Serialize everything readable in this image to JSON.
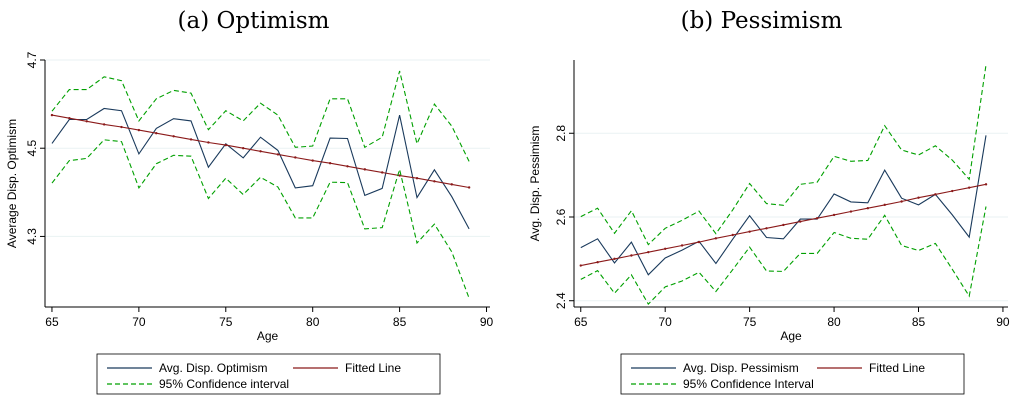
{
  "chart_data": [
    {
      "type": "line",
      "title": "(a) Optimism",
      "xlabel": "Age",
      "ylabel": "Average Disp. Optimism",
      "xlim": [
        64.6,
        90.2
      ],
      "ylim": [
        4.14,
        4.7
      ],
      "xticks": [
        65,
        70,
        75,
        80,
        85,
        90
      ],
      "xtick_labels": [
        "65",
        "70",
        "75",
        "80",
        "85",
        "90"
      ],
      "yticks": [
        4.3,
        4.5,
        4.7
      ],
      "ytick_labels": [
        "4.3",
        "4.5",
        "4.7"
      ],
      "grid": true,
      "legend_position": "bottom",
      "x": [
        65,
        66,
        67,
        68,
        69,
        70,
        71,
        72,
        73,
        74,
        75,
        76,
        77,
        78,
        79,
        80,
        81,
        82,
        83,
        84,
        85,
        86,
        87,
        88,
        89
      ],
      "series": [
        {
          "name": "Avg. Disp. Optimism",
          "color": "#1a3a5c",
          "dash": "solid",
          "values": [
            4.511,
            4.565,
            4.565,
            4.59,
            4.585,
            4.487,
            4.545,
            4.567,
            4.562,
            4.457,
            4.51,
            4.478,
            4.525,
            4.495,
            4.41,
            4.415,
            4.523,
            4.522,
            4.393,
            4.409,
            4.575,
            4.388,
            4.451,
            4.39,
            4.317
          ]
        },
        {
          "name": "Fitted Line",
          "color": "#8b1a1a",
          "dash": "solid",
          "values": [
            4.575,
            4.568,
            4.561,
            4.554,
            4.548,
            4.541,
            4.534,
            4.527,
            4.52,
            4.513,
            4.507,
            4.5,
            4.493,
            4.486,
            4.479,
            4.472,
            4.466,
            4.459,
            4.452,
            4.445,
            4.438,
            4.432,
            4.425,
            4.418,
            4.411
          ]
        },
        {
          "name": "95% Confidence interval",
          "color": "#00a000",
          "dash": "dashed",
          "values": [
            4.584,
            4.633,
            4.633,
            4.662,
            4.653,
            4.562,
            4.612,
            4.631,
            4.625,
            4.542,
            4.585,
            4.562,
            4.602,
            4.575,
            4.502,
            4.505,
            4.612,
            4.612,
            4.502,
            4.525,
            4.675,
            4.51,
            4.6,
            4.55,
            4.47
          ],
          "values_lower": [
            4.421,
            4.472,
            4.477,
            4.519,
            4.515,
            4.41,
            4.465,
            4.484,
            4.482,
            4.386,
            4.432,
            4.395,
            4.434,
            4.412,
            4.342,
            4.342,
            4.423,
            4.422,
            4.317,
            4.32,
            4.452,
            4.285,
            4.328,
            4.265,
            4.16
          ]
        }
      ],
      "legend": [
        {
          "label": "Avg. Disp. Optimism",
          "color": "#1a3a5c",
          "dash": "solid"
        },
        {
          "label": "Fitted Line",
          "color": "#8b1a1a",
          "dash": "solid"
        },
        {
          "label": "95% Confidence interval",
          "color": "#00a000",
          "dash": "dashed"
        }
      ]
    },
    {
      "type": "line",
      "title": "(b) Pessimism",
      "xlabel": "Age",
      "ylabel": "Avg. Disp. Pessimism",
      "xlim": [
        64.6,
        90.3
      ],
      "ylim": [
        2.385,
        2.975
      ],
      "xticks": [
        65,
        70,
        75,
        80,
        85,
        90
      ],
      "xtick_labels": [
        "65",
        "70",
        "75",
        "80",
        "85",
        "90"
      ],
      "yticks": [
        2.4,
        2.6,
        2.8
      ],
      "ytick_labels": [
        "2.4",
        "2.6",
        "2.8"
      ],
      "grid": true,
      "legend_position": "bottom",
      "x": [
        65,
        66,
        67,
        68,
        69,
        70,
        71,
        72,
        73,
        74,
        75,
        76,
        77,
        78,
        79,
        80,
        81,
        82,
        83,
        84,
        85,
        86,
        87,
        88,
        89
      ],
      "series": [
        {
          "name": "Avg. Disp. Pessimism",
          "color": "#1a3a5c",
          "dash": "solid",
          "values": [
            2.527,
            2.548,
            2.49,
            2.54,
            2.462,
            2.502,
            2.521,
            2.542,
            2.489,
            2.547,
            2.603,
            2.551,
            2.548,
            2.595,
            2.595,
            2.655,
            2.636,
            2.634,
            2.712,
            2.645,
            2.629,
            2.654,
            2.605,
            2.552,
            2.795
          ]
        },
        {
          "name": "Fitted Line",
          "color": "#8b1a1a",
          "dash": "solid",
          "values": [
            2.484,
            2.492,
            2.5,
            2.508,
            2.516,
            2.524,
            2.532,
            2.54,
            2.549,
            2.557,
            2.565,
            2.573,
            2.581,
            2.589,
            2.597,
            2.605,
            2.613,
            2.621,
            2.629,
            2.637,
            2.646,
            2.654,
            2.662,
            2.67,
            2.678
          ]
        },
        {
          "name": "95% Confidence Interval",
          "color": "#00a000",
          "dash": "dashed",
          "values": [
            2.601,
            2.621,
            2.561,
            2.615,
            2.534,
            2.573,
            2.592,
            2.614,
            2.56,
            2.617,
            2.68,
            2.632,
            2.628,
            2.678,
            2.683,
            2.745,
            2.733,
            2.735,
            2.818,
            2.76,
            2.748,
            2.77,
            2.736,
            2.69,
            2.963
          ],
          "values_lower": [
            2.451,
            2.472,
            2.418,
            2.462,
            2.392,
            2.433,
            2.447,
            2.468,
            2.422,
            2.474,
            2.528,
            2.471,
            2.47,
            2.513,
            2.513,
            2.563,
            2.549,
            2.547,
            2.604,
            2.532,
            2.52,
            2.537,
            2.475,
            2.411,
            2.625
          ]
        }
      ],
      "legend": [
        {
          "label": "Avg. Disp. Pessimism",
          "color": "#1a3a5c",
          "dash": "solid"
        },
        {
          "label": "Fitted Line",
          "color": "#8b1a1a",
          "dash": "solid"
        },
        {
          "label": "95% Confidence Interval",
          "color": "#00a000",
          "dash": "dashed"
        }
      ]
    }
  ]
}
